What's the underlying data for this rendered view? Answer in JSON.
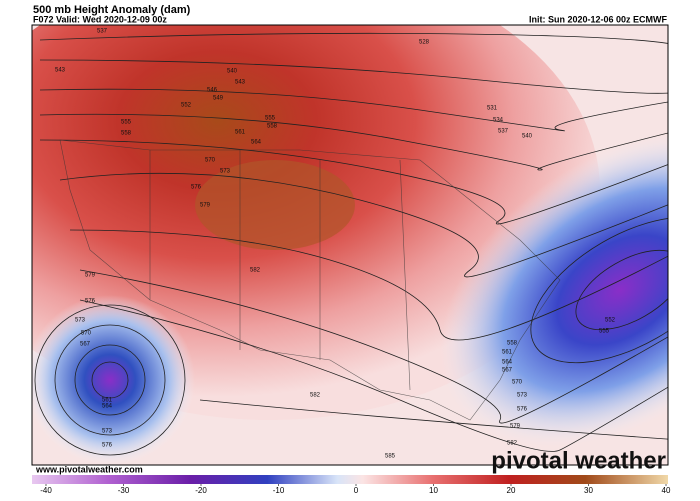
{
  "header": {
    "title": "500 mb Height Anomaly (dam)",
    "valid": "F072 Valid: Wed 2020-12-09 00z",
    "init": "Init: Sun 2020-12-06 00z ECMWF"
  },
  "contour_labels": [
    537,
    528,
    543,
    540,
    543,
    546,
    549,
    552,
    555,
    558,
    555,
    558,
    561,
    564,
    570,
    573,
    576,
    579,
    582,
    531,
    534,
    537,
    540,
    579,
    576,
    573,
    570,
    567,
    561,
    564,
    573,
    576,
    582,
    585,
    552,
    555,
    558,
    561,
    564,
    567,
    570,
    573,
    576,
    579,
    582
  ],
  "colorbar": {
    "range": [
      -40,
      40
    ],
    "ticks": [
      -40,
      -30,
      -20,
      -10,
      0,
      10,
      20,
      30,
      40
    ]
  },
  "footer": {
    "website": "www.pivotalweather.com",
    "logo": "pivotal weather"
  }
}
